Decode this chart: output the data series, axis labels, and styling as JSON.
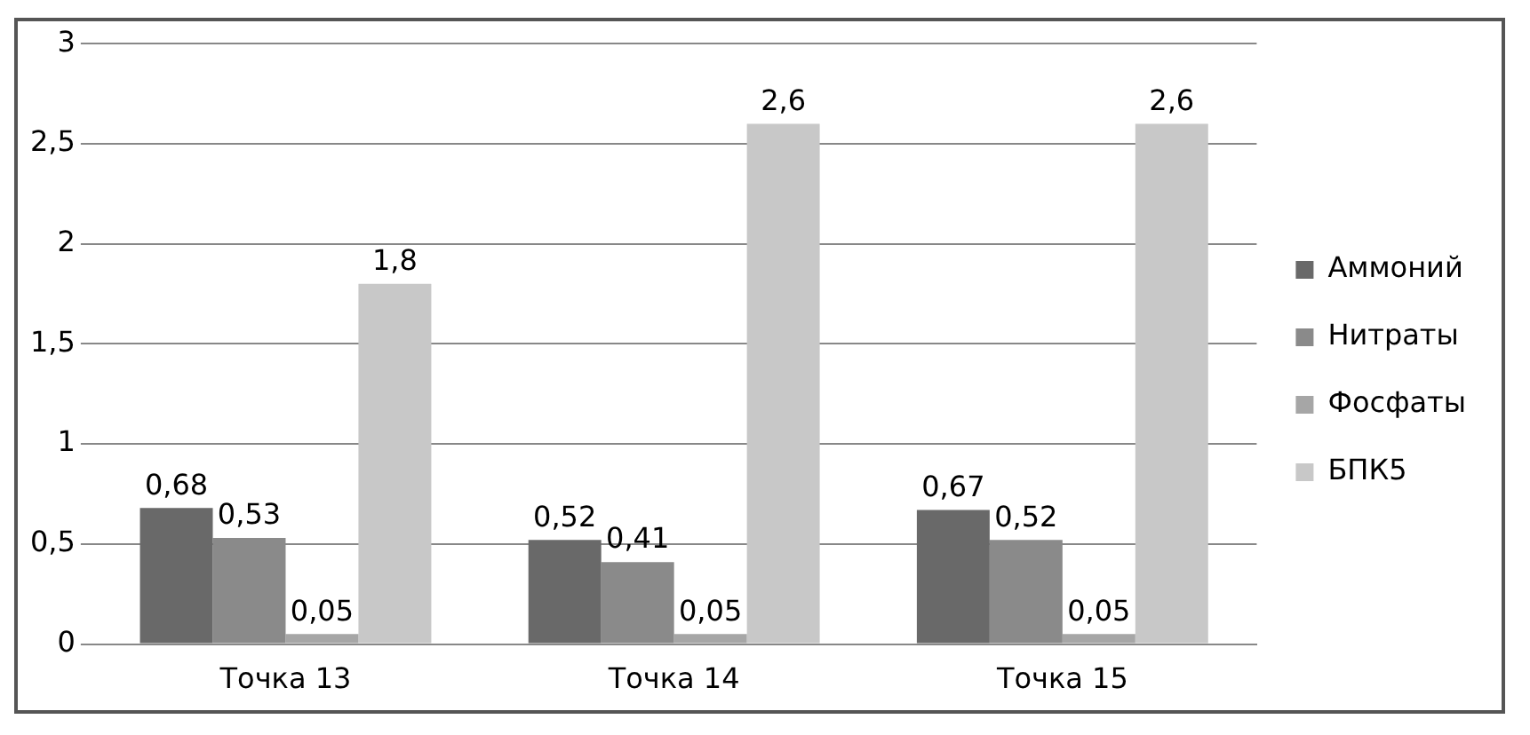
{
  "chart_data": {
    "type": "bar",
    "categories": [
      "Точка 13",
      "Точка 14",
      "Точка 15"
    ],
    "series": [
      {
        "name": "Аммоний",
        "color": "#696969",
        "values": [
          0.68,
          0.52,
          0.67
        ],
        "value_labels": [
          "0,68",
          "0,52",
          "0,67"
        ]
      },
      {
        "name": "Нитраты",
        "color": "#8a8a8a",
        "values": [
          0.53,
          0.41,
          0.52
        ],
        "value_labels": [
          "0,53",
          "0,41",
          "0,52"
        ]
      },
      {
        "name": "Фосфаты",
        "color": "#a6a6a6",
        "values": [
          0.05,
          0.05,
          0.05
        ],
        "value_labels": [
          "0,05",
          "0,05",
          "0,05"
        ]
      },
      {
        "name": "БПК5",
        "color": "#c8c8c8",
        "values": [
          1.8,
          2.6,
          2.6
        ],
        "value_labels": [
          "1,8",
          "2,6",
          "2,6"
        ]
      }
    ],
    "ylim": [
      0,
      3
    ],
    "yticks": [
      0,
      {
        "value": 0.5,
        "label": "0,5"
      },
      1,
      {
        "value": 1.5,
        "label": "1,5"
      },
      2,
      {
        "value": 2.5,
        "label": "2,5"
      },
      3
    ],
    "grid": "y",
    "legend": "right"
  }
}
